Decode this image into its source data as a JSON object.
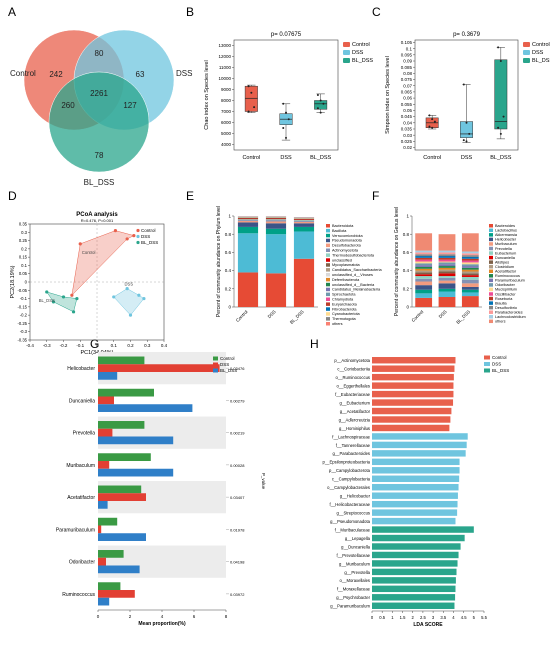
{
  "colors": {
    "control": "#e8604c",
    "dss": "#6fc5df",
    "bl_dss": "#2aa58c",
    "g_control": "#3a9a44",
    "g_dss": "#e23f33",
    "g_bl_dss": "#2f7fc8",
    "grid": "#bbbbbb",
    "bar_bg": "#ececec"
  },
  "panels": {
    "a": "A",
    "b": "B",
    "c": "C",
    "d": "D",
    "e": "E",
    "f": "F",
    "g": "G",
    "h": "H"
  },
  "chart_data": [
    {
      "panel": "A",
      "type": "venn",
      "sets": [
        "Control",
        "DSS",
        "BL_DSS"
      ],
      "regions": {
        "control_only": 242,
        "dss_only": 63,
        "bl_dss_only": 78,
        "control_dss": 80,
        "control_bl_dss": 260,
        "dss_bl_dss": 127,
        "all": 2261
      }
    },
    {
      "panel": "B",
      "type": "box",
      "title": "p= 0.07675",
      "ylabel": "Chao index on Species level",
      "categories": [
        "Control",
        "DSS",
        "BL_DSS"
      ],
      "legend": [
        "Control",
        "DSS",
        "BL_DSS"
      ],
      "yticks": [
        4000,
        5000,
        6000,
        7000,
        8000,
        9000,
        10000,
        11000,
        12000,
        13000
      ],
      "ylim": [
        3500,
        13500
      ],
      "boxes": [
        {
          "name": "Control",
          "min": 6900,
          "q1": 7000,
          "median": 8200,
          "q3": 9300,
          "max": 9400,
          "points": [
            9300,
            8700,
            7400,
            7000
          ]
        },
        {
          "name": "DSS",
          "min": 4400,
          "q1": 5800,
          "median": 6300,
          "q3": 6800,
          "max": 7700,
          "points": [
            7700,
            6900,
            6300,
            5500,
            4600
          ]
        },
        {
          "name": "BL_DSS",
          "min": 6900,
          "q1": 7200,
          "median": 7700,
          "q3": 8000,
          "max": 8600,
          "points": [
            8500,
            8000,
            7700,
            7300,
            6900
          ]
        }
      ]
    },
    {
      "panel": "C",
      "type": "box",
      "title": "p= 0.3679",
      "ylabel": "Simpson index on Species level",
      "categories": [
        "Control",
        "DSS",
        "BL_DSS"
      ],
      "legend": [
        "Control",
        "DSS",
        "BL_DSS"
      ],
      "yticks": [
        0.02,
        0.025,
        0.03,
        0.035,
        0.04,
        0.045,
        0.05,
        0.055,
        0.06,
        0.065,
        0.07,
        0.075,
        0.08,
        0.085,
        0.09,
        0.095,
        0.1,
        0.105
      ],
      "ytick_labels": [
        "0.02",
        "0.025",
        "0.03",
        "0.035",
        "0.04",
        "0.045",
        "0.05",
        "0.055",
        "0.06",
        "0.065",
        "0.07",
        "0.075",
        "0.08",
        "0.085",
        "0.09",
        "0.095",
        "0.1",
        "0.105"
      ],
      "ylim": [
        0.018,
        0.107
      ],
      "boxes": [
        {
          "name": "Control",
          "min": 0.035,
          "q1": 0.036,
          "median": 0.04,
          "q3": 0.044,
          "max": 0.046,
          "points": [
            0.046,
            0.043,
            0.041,
            0.037,
            0.036
          ]
        },
        {
          "name": "DSS",
          "min": 0.024,
          "q1": 0.028,
          "median": 0.031,
          "q3": 0.041,
          "max": 0.071,
          "points": [
            0.071,
            0.04,
            0.031,
            0.026,
            0.025
          ]
        },
        {
          "name": "BL_DSS",
          "min": 0.027,
          "q1": 0.035,
          "median": 0.041,
          "q3": 0.091,
          "max": 0.101,
          "points": [
            0.101,
            0.09,
            0.045,
            0.036,
            0.031
          ]
        }
      ]
    },
    {
      "panel": "D",
      "type": "scatter",
      "title": "PCoA analysis",
      "subtitle": "R=0.476, P=0.001",
      "xlabel": "PC1(34.04%)",
      "ylabel": "PC2(18.19%)",
      "xticks": [
        -0.4,
        -0.3,
        -0.2,
        -0.1,
        0,
        0.1,
        0.2,
        0.3,
        0.4
      ],
      "xtick_labels": [
        "-0.4",
        "-0.3",
        "-0.2",
        "-0.1",
        "0",
        "0.1",
        "0.2",
        "0.3",
        "0.4"
      ],
      "yticks": [
        -0.35,
        -0.3,
        -0.25,
        -0.2,
        -0.15,
        -0.1,
        -0.05,
        0,
        0.05,
        0.1,
        0.15,
        0.2,
        0.25,
        0.3,
        0.35
      ],
      "ytick_labels": [
        "-0.35",
        "-0.3",
        "-0.25",
        "-0.2",
        "-0.15",
        "-0.1",
        "-0.05",
        "0",
        "0.05",
        "0.1",
        "0.15",
        "0.2",
        "0.25",
        "0.3",
        "0.35"
      ],
      "xlim": [
        -0.4,
        0.4
      ],
      "ylim": [
        -0.35,
        0.35
      ],
      "legend": [
        "Control",
        "DSS",
        "BL_DSS"
      ],
      "group_labels": [
        "Control",
        "DSS",
        "BL_DSS"
      ],
      "series": [
        {
          "name": "Control",
          "points": [
            [
              0.11,
              0.31
            ],
            [
              0.22,
              0.28
            ],
            [
              -0.1,
              0.23
            ],
            [
              0.18,
              0.26
            ],
            [
              -0.15,
              -0.08
            ]
          ]
        },
        {
          "name": "DSS",
          "points": [
            [
              0.18,
              -0.04
            ],
            [
              0.25,
              -0.08
            ],
            [
              0.28,
              -0.1
            ],
            [
              0.1,
              -0.09
            ],
            [
              0.2,
              -0.2
            ]
          ]
        },
        {
          "name": "BL_DSS",
          "points": [
            [
              -0.3,
              -0.06
            ],
            [
              -0.26,
              -0.12
            ],
            [
              -0.2,
              -0.09
            ],
            [
              -0.14,
              -0.18
            ],
            [
              -0.12,
              -0.1
            ]
          ]
        }
      ]
    },
    {
      "panel": "E",
      "type": "stacked_bar",
      "ylabel": "Percent of community abundance on Phylum level",
      "categories": [
        "Control",
        "DSS",
        "BL_DSS"
      ],
      "yticks": [
        0,
        0.2,
        0.4,
        0.6,
        0.8,
        1
      ],
      "ytick_labels": [
        "0",
        "0.2",
        "0.4",
        "0.6",
        "0.8",
        "1"
      ],
      "ylim": [
        0,
        1
      ],
      "legend": [
        "Bacteroidota",
        "Bacillota",
        "Verrucomicrobiota",
        "Pseudomonadota",
        "Desulfobacterota",
        "Actinomycetota",
        "Thermodesulfobacteriota",
        "unclassified",
        "Mycoplasmatota",
        "Candidatus_Saccharibacteria",
        "unclassified_d__Viruses",
        "Deferribacterota",
        "unclassified_d__Bacteria",
        "Candidatus_Melainabacteria",
        "Spirochaetota",
        "Chlamydiota",
        "Euryarchaeota",
        "Fibrobacterota",
        "Cyanobacteriota",
        "Thermotogota",
        "others"
      ],
      "series_colors": [
        "#e64b35",
        "#4dbbd5",
        "#00a087",
        "#3c5488",
        "#f39b7f",
        "#8491b4",
        "#91d1c2",
        "#dc0000",
        "#7e6148",
        "#b09c85",
        "#d9d9d9",
        "#e18727",
        "#20854e",
        "#7876b1",
        "#6f99ad",
        "#ee4c97",
        "#bc3c29",
        "#0072b5",
        "#ffdc91",
        "#868686",
        "#fa8072"
      ],
      "series_values": [
        [
          0.38,
          0.37,
          0.53
        ],
        [
          0.43,
          0.43,
          0.3
        ],
        [
          0.07,
          0.06,
          0.05
        ],
        [
          0.05,
          0.06,
          0.04
        ],
        [
          0.015,
          0.02,
          0.015
        ],
        [
          0.01,
          0.015,
          0.01
        ],
        [
          0.01,
          0.01,
          0.01
        ],
        [
          0.008,
          0.008,
          0.008
        ],
        [
          0.005,
          0.005,
          0.005
        ],
        [
          0.004,
          0.004,
          0.004
        ],
        [
          0.003,
          0.003,
          0.003
        ],
        [
          0.002,
          0.002,
          0.002
        ],
        [
          0.002,
          0.002,
          0.002
        ],
        [
          0.001,
          0.001,
          0.001
        ],
        [
          0.001,
          0.001,
          0.001
        ],
        [
          0.001,
          0.001,
          0.001
        ],
        [
          0.001,
          0.001,
          0.001
        ],
        [
          0.001,
          0.001,
          0.001
        ],
        [
          0.001,
          0.001,
          0.001
        ],
        [
          0.001,
          0.001,
          0.001
        ],
        [
          0.001,
          0.001,
          0.001
        ]
      ]
    },
    {
      "panel": "F",
      "type": "stacked_bar",
      "ylabel": "Percent of community abundance on Genus level",
      "categories": [
        "Control",
        "DSS",
        "BL_DSS"
      ],
      "yticks": [
        0,
        0.2,
        0.4,
        0.6,
        0.8,
        1
      ],
      "ytick_labels": [
        "0",
        "0.2",
        "0.4",
        "0.6",
        "0.8",
        "1"
      ],
      "ylim": [
        0,
        1
      ],
      "legend": [
        "Bacteroides",
        "Lactobacillus",
        "Akkermansia",
        "Helicobacter",
        "Muribaculum",
        "Prevotella",
        "Eubacterium",
        "Duncaniella",
        "Alistipes",
        "Clostridium",
        "Acetatifactor",
        "Ruminococcus",
        "Paramuribaculum",
        "Odoribacter",
        "Mucispirillum",
        "Oscillibacter",
        "Roseburia",
        "Blautia",
        "Desulfovibrio",
        "Parabacteroides",
        "Lachnoclostridium",
        "others"
      ],
      "series_colors": [
        "#e64b35",
        "#4dbbd5",
        "#00a087",
        "#3c5488",
        "#f39b7f",
        "#8491b4",
        "#91d1c2",
        "#dc0000",
        "#7e6148",
        "#b09c85",
        "#e18727",
        "#20854e",
        "#7876b1",
        "#6f99ad",
        "#ffdc91",
        "#ee4c97",
        "#bc3c29",
        "#0072b5",
        "#868686",
        "#fb9a99",
        "#a6cee3",
        "#f08a73"
      ],
      "series_values": [
        [
          0.1,
          0.11,
          0.12
        ],
        [
          0.05,
          0.06,
          0.04
        ],
        [
          0.04,
          0.03,
          0.03
        ],
        [
          0.05,
          0.06,
          0.03
        ],
        [
          0.04,
          0.03,
          0.04
        ],
        [
          0.03,
          0.03,
          0.04
        ],
        [
          0.03,
          0.02,
          0.03
        ],
        [
          0.02,
          0.03,
          0.02
        ],
        [
          0.02,
          0.02,
          0.02
        ],
        [
          0.02,
          0.02,
          0.02
        ],
        [
          0.02,
          0.02,
          0.02
        ],
        [
          0.02,
          0.02,
          0.02
        ],
        [
          0.02,
          0.02,
          0.02
        ],
        [
          0.02,
          0.02,
          0.02
        ],
        [
          0.02,
          0.01,
          0.02
        ],
        [
          0.02,
          0.02,
          0.02
        ],
        [
          0.02,
          0.02,
          0.02
        ],
        [
          0.02,
          0.02,
          0.02
        ],
        [
          0.02,
          0.02,
          0.02
        ],
        [
          0.02,
          0.02,
          0.02
        ],
        [
          0.02,
          0.02,
          0.02
        ],
        [
          0.19,
          0.18,
          0.2
        ]
      ]
    },
    {
      "panel": "G",
      "type": "bar",
      "orientation": "horizontal",
      "xlabel": "Mean proportion(%)",
      "side_label": "P_value",
      "xticks": [
        0,
        2,
        4,
        6,
        8
      ],
      "xlim": [
        0,
        8
      ],
      "legend": [
        "Control",
        "DSS",
        "BL_DSS"
      ],
      "categories": [
        "Helicobacter",
        "Duncaniella",
        "Prevotella",
        "Muribaculum",
        "Acetatifactor",
        "Paramuribaculum",
        "Odoribacter",
        "Ruminococcus"
      ],
      "pvalues": [
        "0.03476",
        "0.00279",
        "0.00219",
        "0.00028",
        "0.03407",
        "0.01978",
        "0.04198",
        "0.03972"
      ],
      "series": [
        {
          "name": "Control",
          "values": [
            2.9,
            3.5,
            2.9,
            3.3,
            2.7,
            1.2,
            1.6,
            1.4
          ]
        },
        {
          "name": "DSS",
          "values": [
            7.6,
            1.0,
            0.9,
            0.7,
            3.0,
            0.2,
            0.5,
            2.3
          ]
        },
        {
          "name": "BL_DSS",
          "values": [
            1.2,
            5.9,
            4.7,
            4.7,
            0.6,
            3.0,
            2.6,
            0.7
          ]
        }
      ]
    },
    {
      "panel": "H",
      "type": "bar",
      "orientation": "horizontal",
      "xlabel": "LDA SCORE",
      "xticks": [
        0,
        0.5,
        1,
        1.5,
        2,
        2.5,
        3,
        3.5,
        4,
        4.5,
        5,
        5.5
      ],
      "xtick_labels": [
        "0",
        "0.5",
        "1",
        "1.5",
        "2",
        "2.5",
        "3",
        "3.5",
        "4",
        "4.5",
        "5",
        "5.5"
      ],
      "xlim": [
        0,
        5.5
      ],
      "legend": [
        "Control",
        "DSS",
        "BL_DSS"
      ],
      "items": [
        {
          "label": "p__Actinomycetota",
          "group": "Control",
          "value": 4.1
        },
        {
          "label": "c__Coriobacteriia",
          "group": "Control",
          "value": 4.05
        },
        {
          "label": "o__Ruminococcus",
          "group": "Control",
          "value": 4.02
        },
        {
          "label": "o__Eggerthellales",
          "group": "Control",
          "value": 4.0
        },
        {
          "label": "f__Eubacteriaceae",
          "group": "Control",
          "value": 4.0
        },
        {
          "label": "g__Eubacterium",
          "group": "Control",
          "value": 3.98
        },
        {
          "label": "g__Acetatifactor",
          "group": "Control",
          "value": 3.9
        },
        {
          "label": "g__Adlercreutzia",
          "group": "Control",
          "value": 3.85
        },
        {
          "label": "g__Hominiphilus",
          "group": "Control",
          "value": 3.8
        },
        {
          "label": "f__Lachnospiraceae",
          "group": "DSS",
          "value": 4.7
        },
        {
          "label": "f__Tannerellaceae",
          "group": "DSS",
          "value": 4.65
        },
        {
          "label": "g__Parabacteroides",
          "group": "DSS",
          "value": 4.6
        },
        {
          "label": "p__Epsilonproteobacteria",
          "group": "DSS",
          "value": 4.3
        },
        {
          "label": "p__Campylobacterota",
          "group": "DSS",
          "value": 4.3
        },
        {
          "label": "c__Campylobacteria",
          "group": "DSS",
          "value": 4.28
        },
        {
          "label": "o__Campylobacterales",
          "group": "DSS",
          "value": 4.25
        },
        {
          "label": "g__Helicobacter",
          "group": "DSS",
          "value": 4.22
        },
        {
          "label": "f__Helicobacteraceae",
          "group": "DSS",
          "value": 4.2
        },
        {
          "label": "g__Streptococcus",
          "group": "DSS",
          "value": 4.18
        },
        {
          "label": "g__Pseudomonadota",
          "group": "DSS",
          "value": 4.1
        },
        {
          "label": "f__Muribaculaceae",
          "group": "BL_DSS",
          "value": 5.0
        },
        {
          "label": "g__Lepagella",
          "group": "BL_DSS",
          "value": 4.55
        },
        {
          "label": "g__Duncaniella",
          "group": "BL_DSS",
          "value": 4.35
        },
        {
          "label": "f__Prevotellaceae",
          "group": "BL_DSS",
          "value": 4.25
        },
        {
          "label": "g__Muribaculum",
          "group": "BL_DSS",
          "value": 4.2
        },
        {
          "label": "g__Prevotella",
          "group": "BL_DSS",
          "value": 4.15
        },
        {
          "label": "o__Moraxellales",
          "group": "BL_DSS",
          "value": 4.12
        },
        {
          "label": "f__Moraxellaceae",
          "group": "BL_DSS",
          "value": 4.1
        },
        {
          "label": "g__Psychrobacter",
          "group": "BL_DSS",
          "value": 4.08
        },
        {
          "label": "g__Paramuribaculum",
          "group": "BL_DSS",
          "value": 4.05
        }
      ]
    }
  ]
}
